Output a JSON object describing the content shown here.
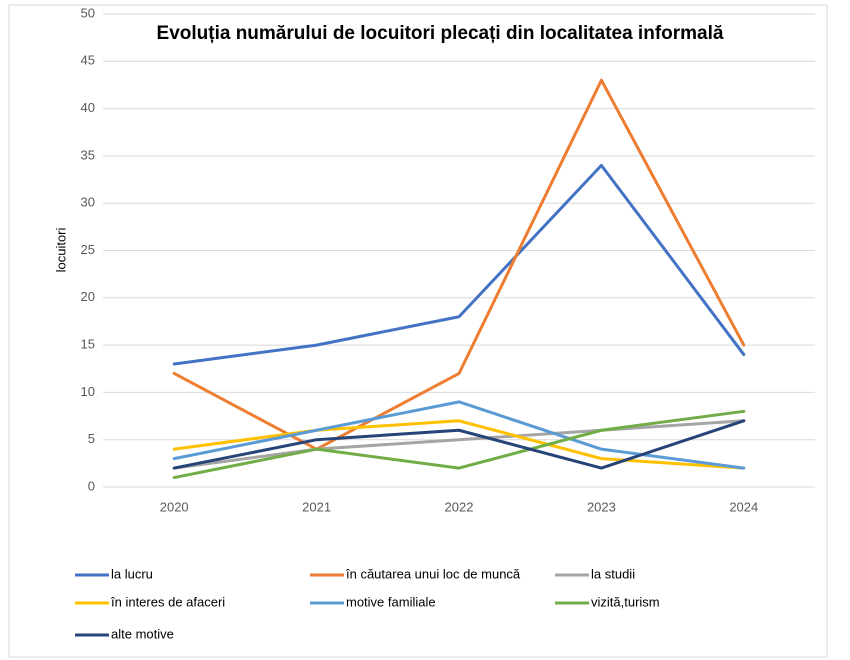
{
  "chart_data": {
    "type": "line",
    "title": "Evoluția numărului de locuitori plecați din localitatea informală",
    "y_label": "locuitori",
    "categories": [
      "2020",
      "2021",
      "2022",
      "2023",
      "2024"
    ],
    "series": [
      {
        "name": "la lucru",
        "color": "#4472c4",
        "values": [
          13,
          15,
          18,
          34,
          14
        ]
      },
      {
        "name": "în căutarea unui loc de muncă",
        "color": "#ed7d31",
        "values": [
          12,
          4,
          12,
          43,
          15
        ]
      },
      {
        "name": "la studii",
        "color": "#a5a5a5",
        "values": [
          2,
          4,
          5,
          6,
          7
        ]
      },
      {
        "name": "în interes de afaceri",
        "color": "#ffc000",
        "values": [
          4,
          6,
          7,
          3,
          2
        ]
      },
      {
        "name": "motive familiale",
        "color": "#5b9bd5",
        "values": [
          3,
          6,
          9,
          4,
          2
        ]
      },
      {
        "name": "vizită,turism",
        "color": "#70ad47",
        "values": [
          1,
          4,
          2,
          6,
          8
        ]
      },
      {
        "name": "alte motive",
        "color": "#264478",
        "values": [
          2,
          5,
          6,
          2,
          7
        ]
      }
    ],
    "ylim": [
      0,
      50
    ],
    "yticks": [
      0,
      5,
      10,
      15,
      20,
      25,
      30,
      35,
      40,
      45,
      50
    ],
    "grid": true,
    "legend": "bottom"
  }
}
